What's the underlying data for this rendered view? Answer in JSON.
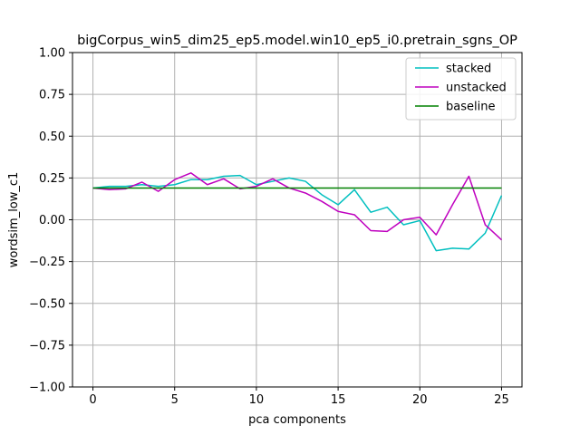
{
  "chart_data": {
    "type": "line",
    "title": "bigCorpus_win5_dim25_ep5.model.win10_ep5_i0.pretrain_sgns_OP",
    "xlabel": "pca components",
    "ylabel": "wordsim_low_c1",
    "xlim": [
      -1.25,
      26.25
    ],
    "ylim": [
      -1.0,
      1.0
    ],
    "x_ticks": [
      0,
      5,
      10,
      15,
      20,
      25
    ],
    "y_ticks": [
      -1.0,
      -0.75,
      -0.5,
      -0.25,
      0.0,
      0.25,
      0.5,
      0.75,
      1.0
    ],
    "x_tick_labels": [
      "0",
      "5",
      "10",
      "15",
      "20",
      "25"
    ],
    "y_tick_labels": [
      "−1.00",
      "−0.75",
      "−0.50",
      "−0.25",
      "0.00",
      "0.25",
      "0.50",
      "0.75",
      "1.00"
    ],
    "grid": true,
    "legend_position": "top-right",
    "x": [
      0,
      1,
      2,
      3,
      4,
      5,
      6,
      7,
      8,
      9,
      10,
      11,
      12,
      13,
      14,
      15,
      16,
      17,
      18,
      19,
      20,
      21,
      22,
      23,
      24,
      25
    ],
    "series": [
      {
        "name": "stacked",
        "color": "#00bfbf",
        "values": [
          0.19,
          0.2,
          0.2,
          0.21,
          0.2,
          0.21,
          0.24,
          0.24,
          0.26,
          0.265,
          0.21,
          0.23,
          0.25,
          0.23,
          0.15,
          0.09,
          0.18,
          0.045,
          0.075,
          -0.03,
          -0.005,
          -0.185,
          -0.17,
          -0.175,
          -0.08,
          0.145
        ]
      },
      {
        "name": "unstacked",
        "color": "#bf00bf",
        "values": [
          0.19,
          0.18,
          0.185,
          0.225,
          0.17,
          0.24,
          0.28,
          0.21,
          0.245,
          0.185,
          0.2,
          0.245,
          0.19,
          0.16,
          0.11,
          0.05,
          0.03,
          -0.065,
          -0.07,
          0.0,
          0.015,
          -0.09,
          0.09,
          0.26,
          -0.03,
          -0.12
        ]
      },
      {
        "name": "baseline",
        "color": "#008000",
        "values": [
          0.19,
          0.19,
          0.19,
          0.19,
          0.19,
          0.19,
          0.19,
          0.19,
          0.19,
          0.19,
          0.19,
          0.19,
          0.19,
          0.19,
          0.19,
          0.19,
          0.19,
          0.19,
          0.19,
          0.19,
          0.19,
          0.19,
          0.19,
          0.19,
          0.19,
          0.19
        ]
      }
    ]
  }
}
